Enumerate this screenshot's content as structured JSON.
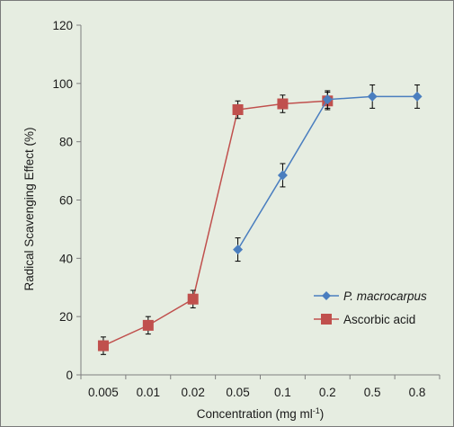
{
  "chart_data": {
    "type": "line",
    "xlabel": "Concentration (mg ml",
    "xlabel_sup": "-1",
    "xlabel_tail": ")",
    "ylabel": "Radical Scavenging Effect (%)",
    "categories": [
      "0.005",
      "0.01",
      "0.02",
      "0.05",
      "0.1",
      "0.2",
      "0.5",
      "0.8"
    ],
    "yticks": [
      "0",
      "20",
      "40",
      "60",
      "80",
      "100",
      "120"
    ],
    "ylim": [
      0,
      120
    ],
    "grid": false,
    "legend_position": "lower-right",
    "series": [
      {
        "name": "P. macrocarpus",
        "name_style": "italic",
        "color": "#4a7ebf",
        "marker": "diamond",
        "x": [
          "0.05",
          "0.1",
          "0.2",
          "0.5",
          "0.8"
        ],
        "values": [
          43,
          68.5,
          94.5,
          95.5,
          95.5
        ],
        "errors": [
          4,
          4,
          3,
          4,
          4
        ]
      },
      {
        "name": "Ascorbic acid",
        "name_style": "normal",
        "color": "#c0504d",
        "marker": "square",
        "x": [
          "0.005",
          "0.01",
          "0.02",
          "0.05",
          "0.1",
          "0.2"
        ],
        "values": [
          10,
          17,
          26,
          91,
          93,
          94
        ],
        "errors": [
          3,
          3,
          3,
          3,
          3,
          3
        ]
      }
    ]
  }
}
